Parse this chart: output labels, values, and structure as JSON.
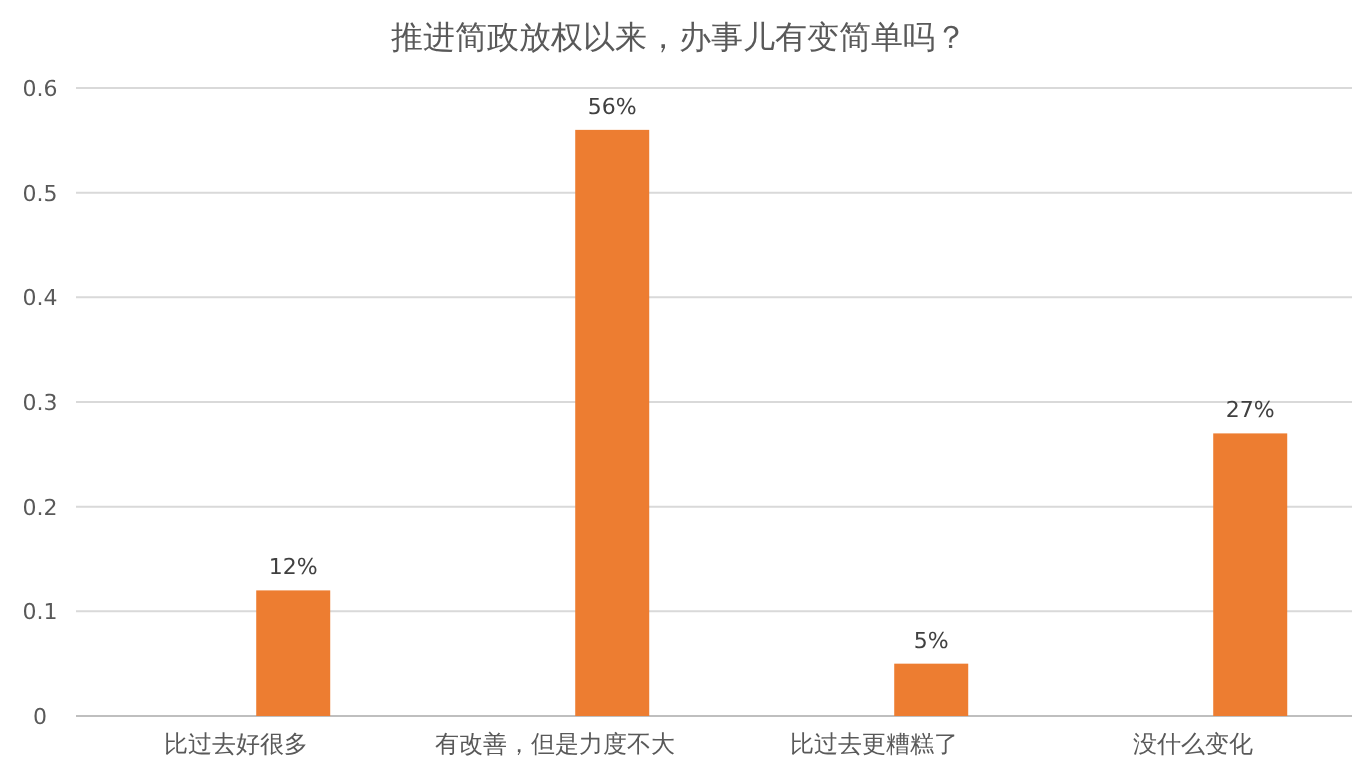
{
  "chart_data": {
    "type": "bar",
    "title": "推进简政放权以来，办事儿有变简单吗？",
    "categories": [
      "比过去好很多",
      "有改善，但是力度不大",
      "比过去更糟糕了",
      "没什么变化"
    ],
    "values": [
      0.12,
      0.56,
      0.05,
      0.27
    ],
    "value_labels": [
      "12%",
      "56%",
      "5%",
      "27%"
    ],
    "color": "#ed7d31",
    "ylim": [
      0,
      0.6
    ],
    "yticks": [
      0,
      0.1,
      0.2,
      0.3,
      0.4,
      0.5,
      0.6
    ],
    "grid": "y"
  }
}
